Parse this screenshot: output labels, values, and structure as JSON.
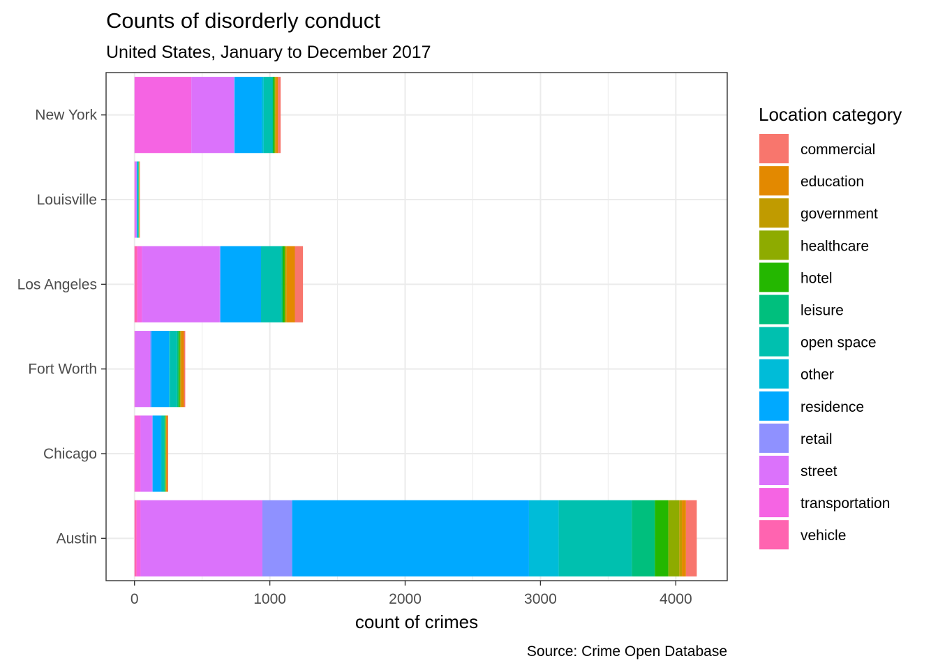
{
  "chart_data": {
    "type": "bar",
    "orientation": "horizontal",
    "stacked": true,
    "title": "Counts of disorderly conduct",
    "subtitle": "United States, January to December 2017",
    "caption": "Source: Crime Open Database",
    "xlabel": "count of crimes",
    "ylabel": "",
    "xlim": [
      0,
      4200
    ],
    "xticks": [
      0,
      1000,
      2000,
      3000,
      4000
    ],
    "grid": true,
    "legend_title": "Location category",
    "legend_position": "right",
    "categories": [
      "New York",
      "Louisville",
      "Los Angeles",
      "Fort Worth",
      "Chicago",
      "Austin"
    ],
    "series": [
      {
        "name": "vehicle",
        "color": "#FF64B0",
        "values": [
          0,
          0,
          20,
          0,
          5,
          15
        ]
      },
      {
        "name": "transportation",
        "color": "#F564E3",
        "values": [
          420,
          5,
          35,
          5,
          40,
          30
        ]
      },
      {
        "name": "street",
        "color": "#DB72FB",
        "values": [
          315,
          10,
          575,
          110,
          85,
          900
        ]
      },
      {
        "name": "retail",
        "color": "#8F91FF",
        "values": [
          5,
          2,
          5,
          10,
          5,
          220
        ]
      },
      {
        "name": "residence",
        "color": "#00A9FF",
        "values": [
          200,
          5,
          300,
          130,
          60,
          1750
        ]
      },
      {
        "name": "other",
        "color": "#00BCD8",
        "values": [
          15,
          2,
          0,
          5,
          5,
          220
        ]
      },
      {
        "name": "open space",
        "color": "#00C0AF",
        "values": [
          65,
          5,
          150,
          55,
          20,
          540
        ]
      },
      {
        "name": "leisure",
        "color": "#00BF7D",
        "values": [
          5,
          2,
          10,
          10,
          5,
          170
        ]
      },
      {
        "name": "hotel",
        "color": "#24B700",
        "values": [
          10,
          2,
          15,
          10,
          5,
          100
        ]
      },
      {
        "name": "healthcare",
        "color": "#8EAB00",
        "values": [
          5,
          1,
          5,
          5,
          2,
          80
        ]
      },
      {
        "name": "government",
        "color": "#C09B00",
        "values": [
          5,
          1,
          10,
          5,
          2,
          20
        ]
      },
      {
        "name": "education",
        "color": "#E38900",
        "values": [
          15,
          2,
          60,
          20,
          10,
          30
        ]
      },
      {
        "name": "commercial",
        "color": "#F8766D",
        "values": [
          20,
          3,
          60,
          10,
          5,
          80
        ]
      }
    ]
  }
}
